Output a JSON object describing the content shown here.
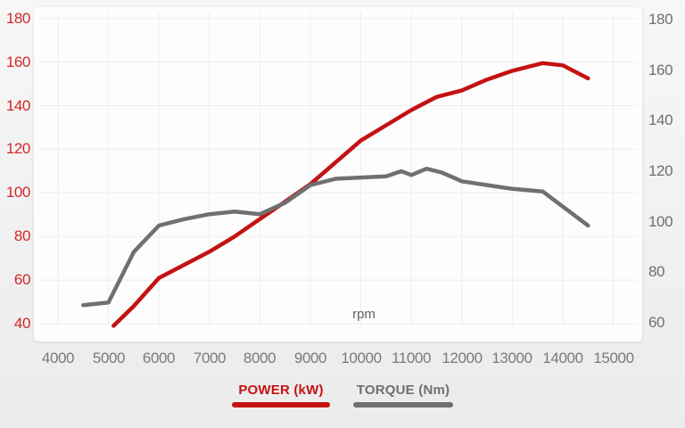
{
  "chart_data": {
    "type": "line",
    "title": "",
    "xlabel": "rpm",
    "x_range": [
      4000,
      15000
    ],
    "x_ticks": [
      4000,
      5000,
      6000,
      7000,
      8000,
      9000,
      10000,
      11000,
      12000,
      13000,
      14000,
      15000
    ],
    "grid": true,
    "legend_position": "bottom",
    "axes": {
      "left": {
        "label": "POWER (kW)",
        "range": [
          40,
          180
        ],
        "ticks": [
          40,
          60,
          80,
          100,
          120,
          140,
          160,
          180
        ],
        "tick_color": "#d22727"
      },
      "right": {
        "label": "TORQUE (Nm)",
        "range": [
          60,
          180
        ],
        "ticks": [
          60,
          80,
          100,
          120,
          140,
          160,
          180
        ],
        "tick_color": "#6e6e6e"
      }
    },
    "series": [
      {
        "name": "POWER (kW)",
        "axis": "left",
        "unit": "kW",
        "color": "#c41212",
        "points": [
          [
            5100,
            39
          ],
          [
            5500,
            48
          ],
          [
            6000,
            61
          ],
          [
            6500,
            67
          ],
          [
            7000,
            73
          ],
          [
            7500,
            80
          ],
          [
            8000,
            88
          ],
          [
            8500,
            96
          ],
          [
            9000,
            104
          ],
          [
            9500,
            114
          ],
          [
            10000,
            124
          ],
          [
            10500,
            131
          ],
          [
            11000,
            138
          ],
          [
            11500,
            144
          ],
          [
            12000,
            147
          ],
          [
            12500,
            152
          ],
          [
            13000,
            156
          ],
          [
            13600,
            159.5
          ],
          [
            14000,
            158.5
          ],
          [
            14500,
            152.5
          ]
        ]
      },
      {
        "name": "TORQUE (Nm)",
        "axis": "right",
        "unit": "Nm",
        "color": "#707070",
        "points": [
          [
            4500,
            67
          ],
          [
            5000,
            68
          ],
          [
            5500,
            88
          ],
          [
            6000,
            98.5
          ],
          [
            6500,
            101
          ],
          [
            7000,
            103
          ],
          [
            7500,
            104
          ],
          [
            8000,
            103
          ],
          [
            8500,
            107.5
          ],
          [
            9000,
            114.5
          ],
          [
            9500,
            117
          ],
          [
            10000,
            117.5
          ],
          [
            10500,
            118
          ],
          [
            10800,
            120
          ],
          [
            11000,
            118.5
          ],
          [
            11300,
            121
          ],
          [
            11600,
            119.5
          ],
          [
            12000,
            116
          ],
          [
            12500,
            114.5
          ],
          [
            13000,
            113
          ],
          [
            13600,
            112
          ],
          [
            14500,
            98.5
          ]
        ]
      }
    ]
  },
  "colors": {
    "page_background": "#f1f1f1",
    "plot_background": "#fdfdfd",
    "gridline": "#ededed",
    "x_tick_color": "#7a7a7a"
  }
}
